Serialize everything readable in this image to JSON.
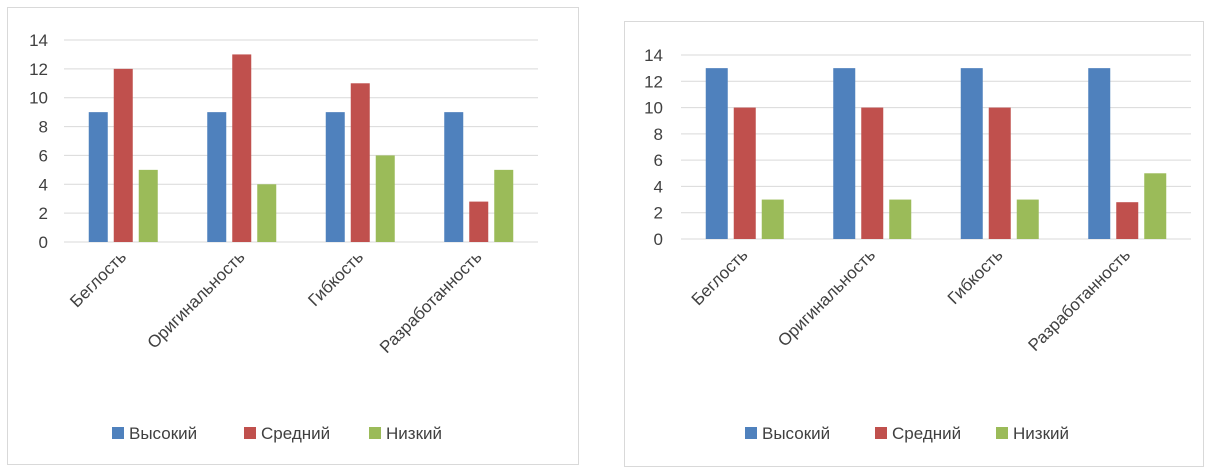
{
  "chart_data": [
    {
      "type": "bar",
      "categories": [
        "Беглость",
        "Оригинальность",
        "Гибкость",
        "Разработанность"
      ],
      "series": [
        {
          "name": "Высокий",
          "color": "#4f81bd",
          "values": [
            9,
            9,
            9,
            9
          ]
        },
        {
          "name": "Средний",
          "color": "#c0504d",
          "values": [
            12,
            13,
            11,
            2.8
          ]
        },
        {
          "name": "Низкий",
          "color": "#9bbb59",
          "values": [
            5,
            4,
            6,
            5
          ]
        }
      ],
      "yticks": [
        "0",
        "2",
        "4",
        "6",
        "8",
        "10",
        "12",
        "14"
      ],
      "ylim": [
        0,
        14
      ],
      "grid": true,
      "legend_position": "bottom"
    },
    {
      "type": "bar",
      "categories": [
        "Беглость",
        "Оригинальность",
        "Гибкость",
        "Разработанность"
      ],
      "series": [
        {
          "name": "Высокий",
          "color": "#4f81bd",
          "values": [
            13,
            13,
            13,
            13
          ]
        },
        {
          "name": "Средний",
          "color": "#c0504d",
          "values": [
            10,
            10,
            10,
            2.8
          ]
        },
        {
          "name": "Низкий",
          "color": "#9bbb59",
          "values": [
            3,
            3,
            3,
            5
          ]
        }
      ],
      "yticks": [
        "0",
        "2",
        "4",
        "6",
        "8",
        "10",
        "12",
        "14"
      ],
      "ylim": [
        0,
        14
      ],
      "grid": true,
      "legend_position": "bottom"
    }
  ]
}
